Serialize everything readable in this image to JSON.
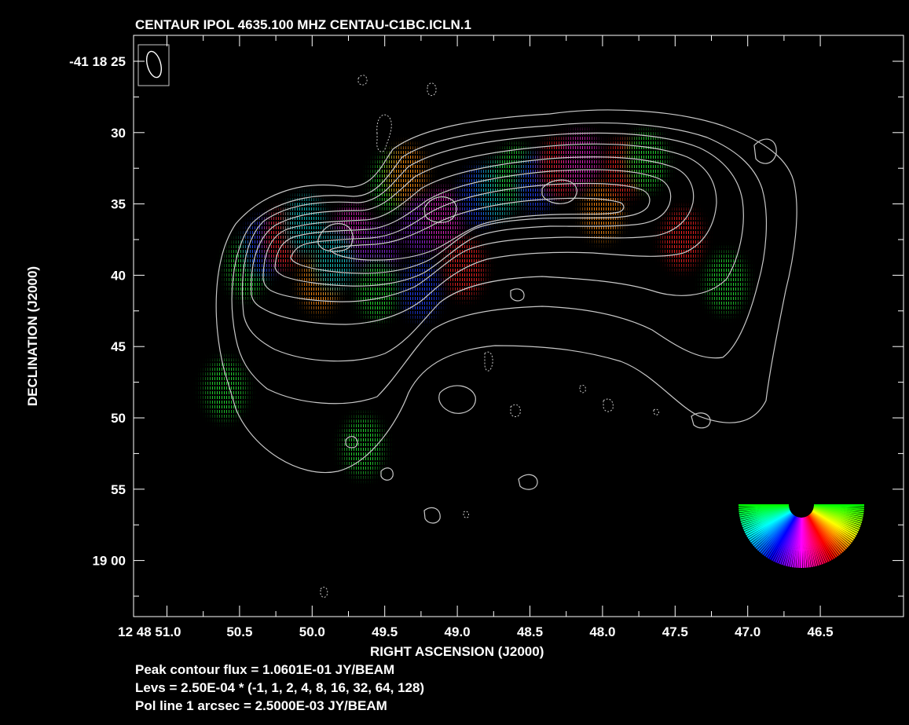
{
  "chart_data": {
    "type": "contour",
    "title": "CENTAUR  IPOL  4635.100 MHZ  CENTAU-C1BC.ICLN.1",
    "xlabel": "RIGHT ASCENSION (J2000)",
    "ylabel": "DECLINATION (J2000)",
    "x_ticks": [
      "12 48 51.0",
      "50.5",
      "50.0",
      "49.5",
      "49.0",
      "48.5",
      "48.0",
      "47.5",
      "47.0",
      "46.5"
    ],
    "y_ticks": [
      "-41 18 25",
      "30",
      "35",
      "40",
      "45",
      "50",
      "55",
      "19 00"
    ],
    "footer": [
      "Peak contour flux =  1.0601E-01 JY/BEAM",
      "Levs = 2.50E-04 * (-1, 1, 2, 4, 8, 16, 32, 64, 128)",
      "Pol line 1 arcsec =  2.5000E-03 JY/BEAM"
    ],
    "peak_contour_flux": 0.10601,
    "peak_contour_flux_unit": "JY/BEAM",
    "contour_base": 0.00025,
    "contour_levels": [
      -1,
      1,
      2,
      4,
      8,
      16,
      32,
      64,
      128
    ],
    "pol_line_scale": 0.0025,
    "pol_line_unit": "JY/BEAM",
    "polarization_patches": [
      {
        "ra": 50.45,
        "dec": 39.5,
        "color": "green"
      },
      {
        "ra": 50.33,
        "dec": 38.0,
        "color": "blue"
      },
      {
        "ra": 50.2,
        "dec": 37.5,
        "color": "red"
      },
      {
        "ra": 50.05,
        "dec": 36.5,
        "color": "cyan"
      },
      {
        "ra": 49.95,
        "dec": 40.5,
        "color": "orange"
      },
      {
        "ra": 49.72,
        "dec": 37.2,
        "color": "magenta"
      },
      {
        "ra": 49.55,
        "dec": 38.5,
        "color": "purple"
      },
      {
        "ra": 49.55,
        "dec": 41.0,
        "color": "green"
      },
      {
        "ra": 49.45,
        "dec": 33.5,
        "color": "green"
      },
      {
        "ra": 49.35,
        "dec": 33.0,
        "color": "orange"
      },
      {
        "ra": 49.25,
        "dec": 36.5,
        "color": "purple"
      },
      {
        "ra": 49.25,
        "dec": 41.0,
        "color": "blue"
      },
      {
        "ra": 49.1,
        "dec": 36.0,
        "color": "magenta"
      },
      {
        "ra": 48.95,
        "dec": 39.5,
        "color": "red"
      },
      {
        "ra": 48.85,
        "dec": 34.5,
        "color": "blue"
      },
      {
        "ra": 48.72,
        "dec": 34.0,
        "color": "cyan"
      },
      {
        "ra": 48.6,
        "dec": 33.0,
        "color": "green"
      },
      {
        "ra": 48.45,
        "dec": 33.5,
        "color": "blue"
      },
      {
        "ra": 48.3,
        "dec": 32.5,
        "color": "red"
      },
      {
        "ra": 48.15,
        "dec": 32.0,
        "color": "magenta"
      },
      {
        "ra": 48.0,
        "dec": 35.5,
        "color": "orange"
      },
      {
        "ra": 47.85,
        "dec": 32.5,
        "color": "red"
      },
      {
        "ra": 47.7,
        "dec": 32.0,
        "color": "green"
      },
      {
        "ra": 47.45,
        "dec": 37.5,
        "color": "red"
      },
      {
        "ra": 47.15,
        "dec": 40.5,
        "color": "green"
      },
      {
        "ra": 50.6,
        "dec": 48.0,
        "color": "green"
      },
      {
        "ra": 49.65,
        "dec": 52.0,
        "color": "green"
      },
      {
        "ra": 49.85,
        "dec": 39.0,
        "color": "cyan"
      }
    ]
  }
}
